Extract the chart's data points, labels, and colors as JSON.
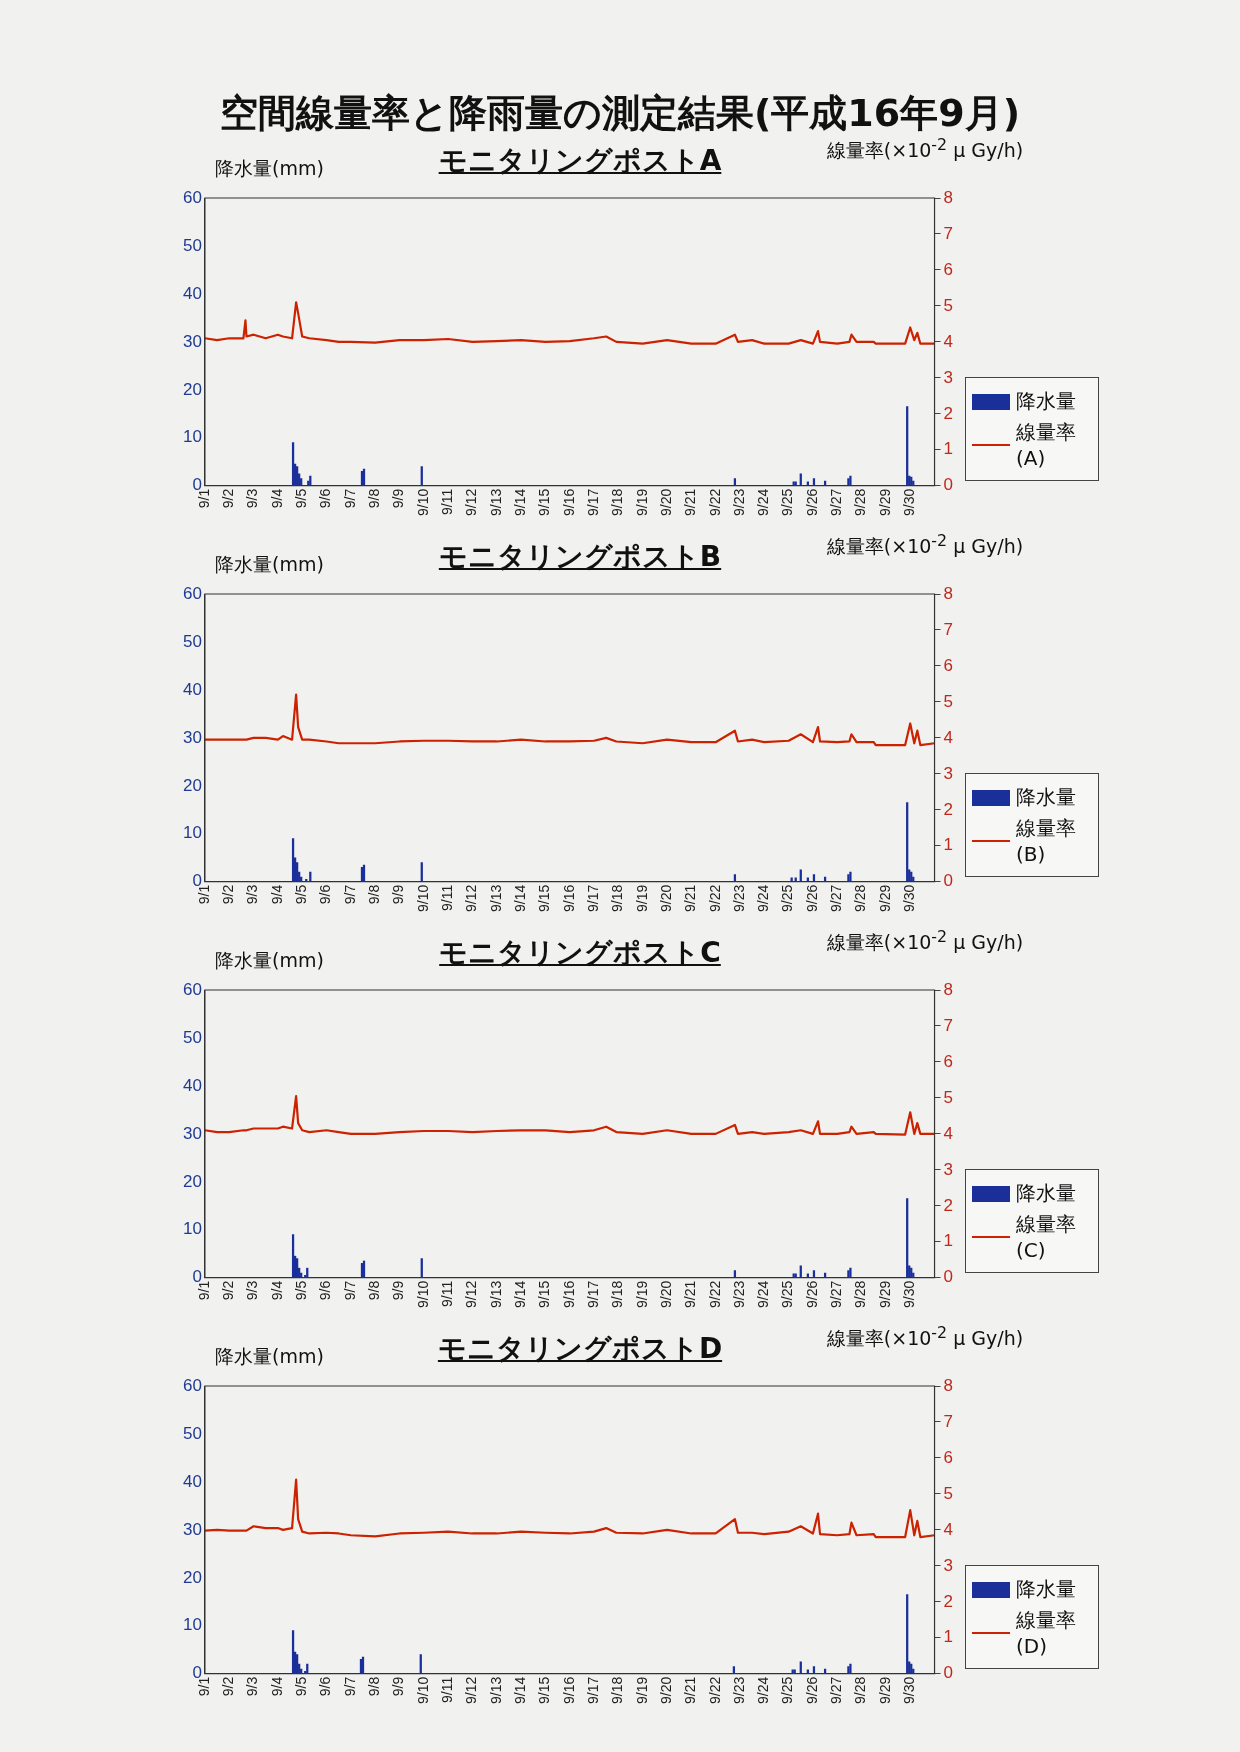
{
  "chart_data": [
    {
      "type": "other",
      "title": "空間線量率と降雨量の測定結果(平成16年9月)"
    },
    {
      "type": "bar",
      "title": "モニタリングポストA",
      "ylabel": "降水量(mm)",
      "y2label": "線量率(×10$^{-2}$ μ Gy/h)",
      "xlim": [
        "--09-01",
        "--10-01"
      ],
      "xticks": [
        {
          "value": "--09-01",
          "label": "9/1"
        },
        {
          "value": "--09-02",
          "label": "9/2"
        },
        {
          "value": "--09-03",
          "label": "9/3"
        },
        {
          "value": "--09-04",
          "label": "9/4"
        },
        {
          "value": "--09-05",
          "label": "9/5"
        },
        {
          "value": "--09-06",
          "label": "9/6"
        },
        {
          "value": "--09-07",
          "label": "9/7"
        },
        {
          "value": "--09-08",
          "label": "9/8"
        },
        {
          "value": "--09-09",
          "label": "9/9"
        },
        {
          "value": "--09-10",
          "label": "9/10"
        },
        {
          "value": "--09-11",
          "label": "9/11"
        },
        {
          "value": "--09-12",
          "label": "9/12"
        },
        {
          "value": "--09-13",
          "label": "9/13"
        },
        {
          "value": "--09-14",
          "label": "9/14"
        },
        {
          "value": "--09-15",
          "label": "9/15"
        },
        {
          "value": "--09-16",
          "label": "9/16"
        },
        {
          "value": "--09-17",
          "label": "9/17"
        },
        {
          "value": "--09-18",
          "label": "9/18"
        },
        {
          "value": "--09-19",
          "label": "9/19"
        },
        {
          "value": "--09-20",
          "label": "9/20"
        },
        {
          "value": "--09-21",
          "label": "9/21"
        },
        {
          "value": "--09-22",
          "label": "9/22"
        },
        {
          "value": "--09-23",
          "label": "9/23"
        },
        {
          "value": "--09-24",
          "label": "9/24"
        },
        {
          "value": "--09-25",
          "label": "9/25"
        },
        {
          "value": "--09-26",
          "label": "9/26"
        },
        {
          "value": "--09-27",
          "label": "9/27"
        },
        {
          "value": "--09-28",
          "label": "9/28"
        },
        {
          "value": "--09-29",
          "label": "9/29"
        },
        {
          "value": "--09-30",
          "label": "9/30"
        }
      ],
      "ylim": [
        0,
        60
      ],
      "yticks": [
        0,
        10,
        20,
        30,
        40,
        50,
        60
      ],
      "y2lim": [
        0,
        8
      ],
      "y2ticks": [
        0,
        1,
        2,
        3,
        4,
        5,
        6,
        7,
        8
      ],
      "legend": "right",
      "marker": "none",
      "series": [
        {
          "name": "降水量",
          "type": "bar",
          "color": "#1a2f9a",
          "x": [
            "--09-04T15:00",
            "--09-04T17:00",
            "--09-04T19:00",
            "--09-04T21:00",
            "--09-04T23:00",
            "--09-05T06:00",
            "--09-05T08:00",
            "--09-07T11:00",
            "--09-07T13:00",
            "--09-09T22:00",
            "--09-22T19:00",
            "--09-25T05:00",
            "--09-25T07:00",
            "--09-25T12:00",
            "--09-25T19:00",
            "--09-26T01:00",
            "--09-26T12:00",
            "--09-27T11:00",
            "--09-27T13:00",
            "--09-29T21:00",
            "--09-29T23:00",
            "--09-30T01:00",
            "--09-30T03:00"
          ],
          "values": [
            9,
            4.5,
            4,
            2.5,
            1.5,
            1,
            2,
            3,
            3.5,
            4,
            1.5,
            0.8,
            0.8,
            2.5,
            0.8,
            1.5,
            1,
            1.5,
            2,
            16.5,
            2,
            1.8,
            1
          ]
        },
        {
          "name": "線量率(A)",
          "type": "line",
          "axis": "y2",
          "color": "#cc2200",
          "x": [
            "--09-01T00:00",
            "--09-01T12:00",
            "--09-02T00:00",
            "--09-02T14:00",
            "--09-02T16:00",
            "--09-02T17:00",
            "--09-03T00:00",
            "--09-03T12:00",
            "--09-04T00:00",
            "--09-04T05:00",
            "--09-04T14:00",
            "--09-04T18:00",
            "--09-04T20:00",
            "--09-05T00:00",
            "--09-05T07:00",
            "--09-06T00:00",
            "--09-06T12:00",
            "--09-07T00:00",
            "--09-08T00:00",
            "--09-09T00:00",
            "--09-10T00:00",
            "--09-11T00:00",
            "--09-12T00:00",
            "--09-13T00:00",
            "--09-14T00:00",
            "--09-15T00:00",
            "--09-16T00:00",
            "--09-17T00:00",
            "--09-17T12:00",
            "--09-17T22:00",
            "--09-19T00:00",
            "--09-20T00:00",
            "--09-21T00:00",
            "--09-22T00:00",
            "--09-22T19:00",
            "--09-22T22:00",
            "--09-23T12:00",
            "--09-24T00:00",
            "--09-25T00:00",
            "--09-25T12:00",
            "--09-26T00:00",
            "--09-26T05:00",
            "--09-26T07:00",
            "--09-27T00:00",
            "--09-27T12:00",
            "--09-27T14:00",
            "--09-27T19:00",
            "--09-28T12:00",
            "--09-28T14:00",
            "--09-29T19:00",
            "--09-30T00:00",
            "--09-30T04:00",
            "--09-30T07:00",
            "--09-30T10:00",
            "--10-01T00:00"
          ],
          "values": [
            4.1,
            4.05,
            4.1,
            4.1,
            4.6,
            4.15,
            4.2,
            4.1,
            4.2,
            4.15,
            4.1,
            5.1,
            4.8,
            4.15,
            4.1,
            4.05,
            4.0,
            4.0,
            3.98,
            4.05,
            4.05,
            4.08,
            4.0,
            4.02,
            4.05,
            4.0,
            4.02,
            4.1,
            4.15,
            4.0,
            3.95,
            4.05,
            3.95,
            3.95,
            4.2,
            4.0,
            4.05,
            3.95,
            3.95,
            4.05,
            3.95,
            4.3,
            4.0,
            3.95,
            4.0,
            4.2,
            4.0,
            4.0,
            3.95,
            3.95,
            4.4,
            4.05,
            4.25,
            3.95,
            3.95
          ]
        }
      ]
    },
    {
      "type": "bar",
      "title": "モニタリングポストB",
      "ylabel": "降水量(mm)",
      "y2label": "線量率(×10$^{-2}$ μ Gy/h)",
      "xlim": [
        "--09-01",
        "--10-01"
      ],
      "xticks": [
        {
          "value": "--09-01",
          "label": "9/1"
        },
        {
          "value": "--09-02",
          "label": "9/2"
        },
        {
          "value": "--09-03",
          "label": "9/3"
        },
        {
          "value": "--09-04",
          "label": "9/4"
        },
        {
          "value": "--09-05",
          "label": "9/5"
        },
        {
          "value": "--09-06",
          "label": "9/6"
        },
        {
          "value": "--09-07",
          "label": "9/7"
        },
        {
          "value": "--09-08",
          "label": "9/8"
        },
        {
          "value": "--09-09",
          "label": "9/9"
        },
        {
          "value": "--09-10",
          "label": "9/10"
        },
        {
          "value": "--09-11",
          "label": "9/11"
        },
        {
          "value": "--09-12",
          "label": "9/12"
        },
        {
          "value": "--09-13",
          "label": "9/13"
        },
        {
          "value": "--09-14",
          "label": "9/14"
        },
        {
          "value": "--09-15",
          "label": "9/15"
        },
        {
          "value": "--09-16",
          "label": "9/16"
        },
        {
          "value": "--09-17",
          "label": "9/17"
        },
        {
          "value": "--09-18",
          "label": "9/18"
        },
        {
          "value": "--09-19",
          "label": "9/19"
        },
        {
          "value": "--09-20",
          "label": "9/20"
        },
        {
          "value": "--09-21",
          "label": "9/21"
        },
        {
          "value": "--09-22",
          "label": "9/22"
        },
        {
          "value": "--09-23",
          "label": "9/23"
        },
        {
          "value": "--09-24",
          "label": "9/24"
        },
        {
          "value": "--09-25",
          "label": "9/25"
        },
        {
          "value": "--09-26",
          "label": "9/26"
        },
        {
          "value": "--09-27",
          "label": "9/27"
        },
        {
          "value": "--09-28",
          "label": "9/28"
        },
        {
          "value": "--09-29",
          "label": "9/29"
        },
        {
          "value": "--09-30",
          "label": "9/30"
        }
      ],
      "ylim": [
        0,
        60
      ],
      "yticks": [
        0,
        10,
        20,
        30,
        40,
        50,
        60
      ],
      "y2lim": [
        0,
        8
      ],
      "y2ticks": [
        0,
        1,
        2,
        3,
        4,
        5,
        6,
        7,
        8
      ],
      "legend": "right",
      "marker": "none",
      "series": [
        {
          "name": "降水量",
          "type": "bar",
          "color": "#1a2f9a",
          "x": [
            "--09-04T15:00",
            "--09-04T17:00",
            "--09-04T19:00",
            "--09-04T21:00",
            "--09-04T23:00",
            "--09-05T04:00",
            "--09-05T08:00",
            "--09-07T11:00",
            "--09-07T13:00",
            "--09-09T22:00",
            "--09-22T19:00",
            "--09-25T03:00",
            "--09-25T07:00",
            "--09-25T12:00",
            "--09-25T19:00",
            "--09-26T01:00",
            "--09-26T12:00",
            "--09-27T11:00",
            "--09-27T13:00",
            "--09-29T21:00",
            "--09-29T23:00",
            "--09-30T01:00",
            "--09-30T03:00"
          ],
          "values": [
            9,
            5,
            4,
            2,
            1,
            0.5,
            2,
            3,
            3.5,
            4,
            1.5,
            0.8,
            0.8,
            2.5,
            0.8,
            1.5,
            1,
            1.5,
            2,
            16.5,
            2.5,
            2,
            1
          ]
        },
        {
          "name": "線量率(B)",
          "type": "line",
          "axis": "y2",
          "color": "#cc2200",
          "x": [
            "--09-01T00:00",
            "--09-01T12:00",
            "--09-02T00:00",
            "--09-02T14:00",
            "--09-02T16:00",
            "--09-02T17:00",
            "--09-03T00:00",
            "--09-03T12:00",
            "--09-04T00:00",
            "--09-04T05:00",
            "--09-04T14:00",
            "--09-04T18:00",
            "--09-04T20:00",
            "--09-05T00:00",
            "--09-05T07:00",
            "--09-06T00:00",
            "--09-06T12:00",
            "--09-07T00:00",
            "--09-08T00:00",
            "--09-09T00:00",
            "--09-10T00:00",
            "--09-11T00:00",
            "--09-12T00:00",
            "--09-13T00:00",
            "--09-14T00:00",
            "--09-15T00:00",
            "--09-16T00:00",
            "--09-17T00:00",
            "--09-17T12:00",
            "--09-17T22:00",
            "--09-19T00:00",
            "--09-20T00:00",
            "--09-21T00:00",
            "--09-22T00:00",
            "--09-22T19:00",
            "--09-22T22:00",
            "--09-23T12:00",
            "--09-24T00:00",
            "--09-25T00:00",
            "--09-25T12:00",
            "--09-26T00:00",
            "--09-26T05:00",
            "--09-26T07:00",
            "--09-27T00:00",
            "--09-27T12:00",
            "--09-27T14:00",
            "--09-27T19:00",
            "--09-28T12:00",
            "--09-28T14:00",
            "--09-29T19:00",
            "--09-30T00:00",
            "--09-30T04:00",
            "--09-30T07:00",
            "--09-30T10:00",
            "--10-01T00:00"
          ],
          "values": [
            3.95,
            3.95,
            3.95,
            3.95,
            3.95,
            3.95,
            4.0,
            4.0,
            3.95,
            4.05,
            3.95,
            5.2,
            4.3,
            3.95,
            3.95,
            3.9,
            3.85,
            3.85,
            3.85,
            3.9,
            3.92,
            3.92,
            3.9,
            3.9,
            3.95,
            3.9,
            3.9,
            3.92,
            4.0,
            3.9,
            3.85,
            3.95,
            3.88,
            3.88,
            4.2,
            3.9,
            3.95,
            3.88,
            3.92,
            4.1,
            3.88,
            4.3,
            3.9,
            3.88,
            3.9,
            4.1,
            3.88,
            3.88,
            3.8,
            3.8,
            4.4,
            3.85,
            4.2,
            3.8,
            3.85
          ]
        }
      ]
    },
    {
      "type": "bar",
      "title": "モニタリングポストC",
      "ylabel": "降水量(mm)",
      "y2label": "線量率(×10$^{-2}$ μ Gy/h)",
      "xlim": [
        "--09-01",
        "--10-01"
      ],
      "xticks": [
        {
          "value": "--09-01",
          "label": "9/1"
        },
        {
          "value": "--09-02",
          "label": "9/2"
        },
        {
          "value": "--09-03",
          "label": "9/3"
        },
        {
          "value": "--09-04",
          "label": "9/4"
        },
        {
          "value": "--09-05",
          "label": "9/5"
        },
        {
          "value": "--09-06",
          "label": "9/6"
        },
        {
          "value": "--09-07",
          "label": "9/7"
        },
        {
          "value": "--09-08",
          "label": "9/8"
        },
        {
          "value": "--09-09",
          "label": "9/9"
        },
        {
          "value": "--09-10",
          "label": "9/10"
        },
        {
          "value": "--09-11",
          "label": "9/11"
        },
        {
          "value": "--09-12",
          "label": "9/12"
        },
        {
          "value": "--09-13",
          "label": "9/13"
        },
        {
          "value": "--09-14",
          "label": "9/14"
        },
        {
          "value": "--09-15",
          "label": "9/15"
        },
        {
          "value": "--09-16",
          "label": "9/16"
        },
        {
          "value": "--09-17",
          "label": "9/17"
        },
        {
          "value": "--09-18",
          "label": "9/18"
        },
        {
          "value": "--09-19",
          "label": "9/19"
        },
        {
          "value": "--09-20",
          "label": "9/20"
        },
        {
          "value": "--09-21",
          "label": "9/21"
        },
        {
          "value": "--09-22",
          "label": "9/22"
        },
        {
          "value": "--09-23",
          "label": "9/23"
        },
        {
          "value": "--09-24",
          "label": "9/24"
        },
        {
          "value": "--09-25",
          "label": "9/25"
        },
        {
          "value": "--09-26",
          "label": "9/26"
        },
        {
          "value": "--09-27",
          "label": "9/27"
        },
        {
          "value": "--09-28",
          "label": "9/28"
        },
        {
          "value": "--09-29",
          "label": "9/29"
        },
        {
          "value": "--09-30",
          "label": "9/30"
        }
      ],
      "ylim": [
        0,
        60
      ],
      "yticks": [
        0,
        10,
        20,
        30,
        40,
        50,
        60
      ],
      "y2lim": [
        0,
        8
      ],
      "y2ticks": [
        0,
        1,
        2,
        3,
        4,
        5,
        6,
        7,
        8
      ],
      "legend": "right",
      "marker": "none",
      "series": [
        {
          "name": "降水量",
          "type": "bar",
          "color": "#1a2f9a",
          "x": [
            "--09-04T15:00",
            "--09-04T17:00",
            "--09-04T19:00",
            "--09-04T21:00",
            "--09-04T23:00",
            "--09-05T03:00",
            "--09-05T05:00",
            "--09-07T11:00",
            "--09-07T13:00",
            "--09-09T22:00",
            "--09-22T19:00",
            "--09-25T05:00",
            "--09-25T07:00",
            "--09-25T12:00",
            "--09-25T19:00",
            "--09-26T01:00",
            "--09-26T12:00",
            "--09-27T11:00",
            "--09-27T13:00",
            "--09-29T21:00",
            "--09-29T23:00",
            "--09-30T01:00",
            "--09-30T03:00"
          ],
          "values": [
            9,
            4.5,
            4,
            2,
            1,
            0.5,
            2,
            3,
            3.5,
            4,
            1.5,
            0.8,
            0.8,
            2.5,
            0.8,
            1.5,
            1,
            1.5,
            2,
            16.5,
            2.5,
            2,
            1
          ]
        },
        {
          "name": "線量率(C)",
          "type": "line",
          "axis": "y2",
          "color": "#cc2200",
          "x": [
            "--09-01T00:00",
            "--09-01T12:00",
            "--09-02T00:00",
            "--09-02T14:00",
            "--09-02T16:00",
            "--09-02T17:00",
            "--09-03T00:00",
            "--09-03T12:00",
            "--09-04T00:00",
            "--09-04T05:00",
            "--09-04T14:00",
            "--09-04T18:00",
            "--09-04T20:00",
            "--09-05T00:00",
            "--09-05T07:00",
            "--09-06T00:00",
            "--09-06T12:00",
            "--09-07T00:00",
            "--09-08T00:00",
            "--09-09T00:00",
            "--09-10T00:00",
            "--09-11T00:00",
            "--09-12T00:00",
            "--09-13T00:00",
            "--09-14T00:00",
            "--09-15T00:00",
            "--09-16T00:00",
            "--09-17T00:00",
            "--09-17T12:00",
            "--09-17T22:00",
            "--09-19T00:00",
            "--09-20T00:00",
            "--09-21T00:00",
            "--09-22T00:00",
            "--09-22T19:00",
            "--09-22T22:00",
            "--09-23T12:00",
            "--09-24T00:00",
            "--09-25T00:00",
            "--09-25T12:00",
            "--09-26T00:00",
            "--09-26T05:00",
            "--09-26T07:00",
            "--09-27T00:00",
            "--09-27T12:00",
            "--09-27T14:00",
            "--09-27T19:00",
            "--09-28T12:00",
            "--09-28T14:00",
            "--09-29T19:00",
            "--09-30T00:00",
            "--09-30T04:00",
            "--09-30T07:00",
            "--09-30T10:00",
            "--10-01T00:00"
          ],
          "values": [
            4.1,
            4.05,
            4.05,
            4.1,
            4.1,
            4.1,
            4.15,
            4.15,
            4.15,
            4.2,
            4.15,
            5.05,
            4.3,
            4.1,
            4.05,
            4.1,
            4.05,
            4.0,
            4.0,
            4.05,
            4.08,
            4.08,
            4.05,
            4.08,
            4.1,
            4.1,
            4.05,
            4.1,
            4.2,
            4.05,
            4.0,
            4.1,
            4.0,
            4.0,
            4.25,
            4.0,
            4.05,
            4.0,
            4.05,
            4.1,
            4.0,
            4.35,
            4.0,
            4.0,
            4.05,
            4.2,
            4.0,
            4.05,
            4.0,
            3.98,
            4.6,
            4.0,
            4.3,
            4.0,
            4.0
          ]
        }
      ]
    },
    {
      "type": "bar",
      "title": "モニタリングポストD",
      "ylabel": "降水量(mm)",
      "y2label": "線量率(×10$^{-2}$ μ Gy/h)",
      "xlim": [
        "--09-01",
        "--10-01"
      ],
      "xticks": [
        {
          "value": "--09-01",
          "label": "9/1"
        },
        {
          "value": "--09-02",
          "label": "9/2"
        },
        {
          "value": "--09-03",
          "label": "9/3"
        },
        {
          "value": "--09-04",
          "label": "9/4"
        },
        {
          "value": "--09-05",
          "label": "9/5"
        },
        {
          "value": "--09-06",
          "label": "9/6"
        },
        {
          "value": "--09-07",
          "label": "9/7"
        },
        {
          "value": "--09-08",
          "label": "9/8"
        },
        {
          "value": "--09-09",
          "label": "9/9"
        },
        {
          "value": "--09-10",
          "label": "9/10"
        },
        {
          "value": "--09-11",
          "label": "9/11"
        },
        {
          "value": "--09-12",
          "label": "9/12"
        },
        {
          "value": "--09-13",
          "label": "9/13"
        },
        {
          "value": "--09-14",
          "label": "9/14"
        },
        {
          "value": "--09-15",
          "label": "9/15"
        },
        {
          "value": "--09-16",
          "label": "9/16"
        },
        {
          "value": "--09-17",
          "label": "9/17"
        },
        {
          "value": "--09-18",
          "label": "9/18"
        },
        {
          "value": "--09-19",
          "label": "9/19"
        },
        {
          "value": "--09-20",
          "label": "9/20"
        },
        {
          "value": "--09-21",
          "label": "9/21"
        },
        {
          "value": "--09-22",
          "label": "9/22"
        },
        {
          "value": "--09-23",
          "label": "9/23"
        },
        {
          "value": "--09-24",
          "label": "9/24"
        },
        {
          "value": "--09-25",
          "label": "9/25"
        },
        {
          "value": "--09-26",
          "label": "9/26"
        },
        {
          "value": "--09-27",
          "label": "9/27"
        },
        {
          "value": "--09-28",
          "label": "9/28"
        },
        {
          "value": "--09-29",
          "label": "9/29"
        },
        {
          "value": "--09-30",
          "label": "9/30"
        }
      ],
      "ylim": [
        0,
        60
      ],
      "yticks": [
        0,
        10,
        20,
        30,
        40,
        50,
        60
      ],
      "y2lim": [
        0,
        8
      ],
      "y2ticks": [
        0,
        1,
        2,
        3,
        4,
        5,
        6,
        7,
        8
      ],
      "legend": "right",
      "marker": "none",
      "series": [
        {
          "name": "降水量",
          "type": "bar",
          "color": "#1a2f9a",
          "x": [
            "--09-04T15:00",
            "--09-04T17:00",
            "--09-04T19:00",
            "--09-04T21:00",
            "--09-04T23:00",
            "--09-05T03:00",
            "--09-05T05:00",
            "--09-07T10:00",
            "--09-07T12:00",
            "--09-09T21:00",
            "--09-22T18:00",
            "--09-25T04:00",
            "--09-25T06:00",
            "--09-25T12:00",
            "--09-25T19:00",
            "--09-26T01:00",
            "--09-26T12:00",
            "--09-27T11:00",
            "--09-27T13:00",
            "--09-29T21:00",
            "--09-29T23:00",
            "--09-30T01:00",
            "--09-30T03:00"
          ],
          "values": [
            9,
            4.5,
            4,
            2,
            1,
            0.5,
            2,
            3,
            3.5,
            4,
            1.5,
            0.8,
            0.8,
            2.5,
            0.8,
            1.5,
            1,
            1.5,
            2,
            16.5,
            2.5,
            2,
            1
          ]
        },
        {
          "name": "線量率(D)",
          "type": "line",
          "axis": "y2",
          "color": "#cc2200",
          "x": [
            "--09-01T00:00",
            "--09-01T12:00",
            "--09-02T00:00",
            "--09-02T14:00",
            "--09-02T16:00",
            "--09-02T17:00",
            "--09-03T00:00",
            "--09-03T12:00",
            "--09-04T00:00",
            "--09-04T05:00",
            "--09-04T14:00",
            "--09-04T18:00",
            "--09-04T20:00",
            "--09-05T00:00",
            "--09-05T07:00",
            "--09-06T00:00",
            "--09-06T12:00",
            "--09-07T00:00",
            "--09-08T00:00",
            "--09-09T00:00",
            "--09-10T00:00",
            "--09-11T00:00",
            "--09-12T00:00",
            "--09-13T00:00",
            "--09-14T00:00",
            "--09-15T00:00",
            "--09-16T00:00",
            "--09-17T00:00",
            "--09-17T12:00",
            "--09-17T22:00",
            "--09-19T00:00",
            "--09-20T00:00",
            "--09-21T00:00",
            "--09-22T00:00",
            "--09-22T19:00",
            "--09-22T22:00",
            "--09-23T12:00",
            "--09-24T00:00",
            "--09-25T00:00",
            "--09-25T12:00",
            "--09-26T00:00",
            "--09-26T05:00",
            "--09-26T07:00",
            "--09-27T00:00",
            "--09-27T12:00",
            "--09-27T14:00",
            "--09-27T19:00",
            "--09-28T12:00",
            "--09-28T14:00",
            "--09-29T19:00",
            "--09-30T00:00",
            "--09-30T04:00",
            "--09-30T07:00",
            "--09-30T10:00",
            "--10-01T00:00"
          ],
          "values": [
            3.98,
            4.0,
            3.98,
            3.98,
            3.98,
            3.98,
            4.1,
            4.05,
            4.05,
            4.0,
            4.05,
            5.4,
            4.3,
            3.95,
            3.9,
            3.92,
            3.9,
            3.85,
            3.82,
            3.9,
            3.92,
            3.95,
            3.9,
            3.9,
            3.95,
            3.92,
            3.9,
            3.95,
            4.05,
            3.92,
            3.9,
            4.0,
            3.9,
            3.9,
            4.3,
            3.92,
            3.92,
            3.88,
            3.95,
            4.1,
            3.9,
            4.45,
            3.88,
            3.85,
            3.88,
            4.2,
            3.85,
            3.88,
            3.8,
            3.8,
            4.55,
            3.85,
            4.25,
            3.8,
            3.85
          ]
        }
      ]
    }
  ]
}
